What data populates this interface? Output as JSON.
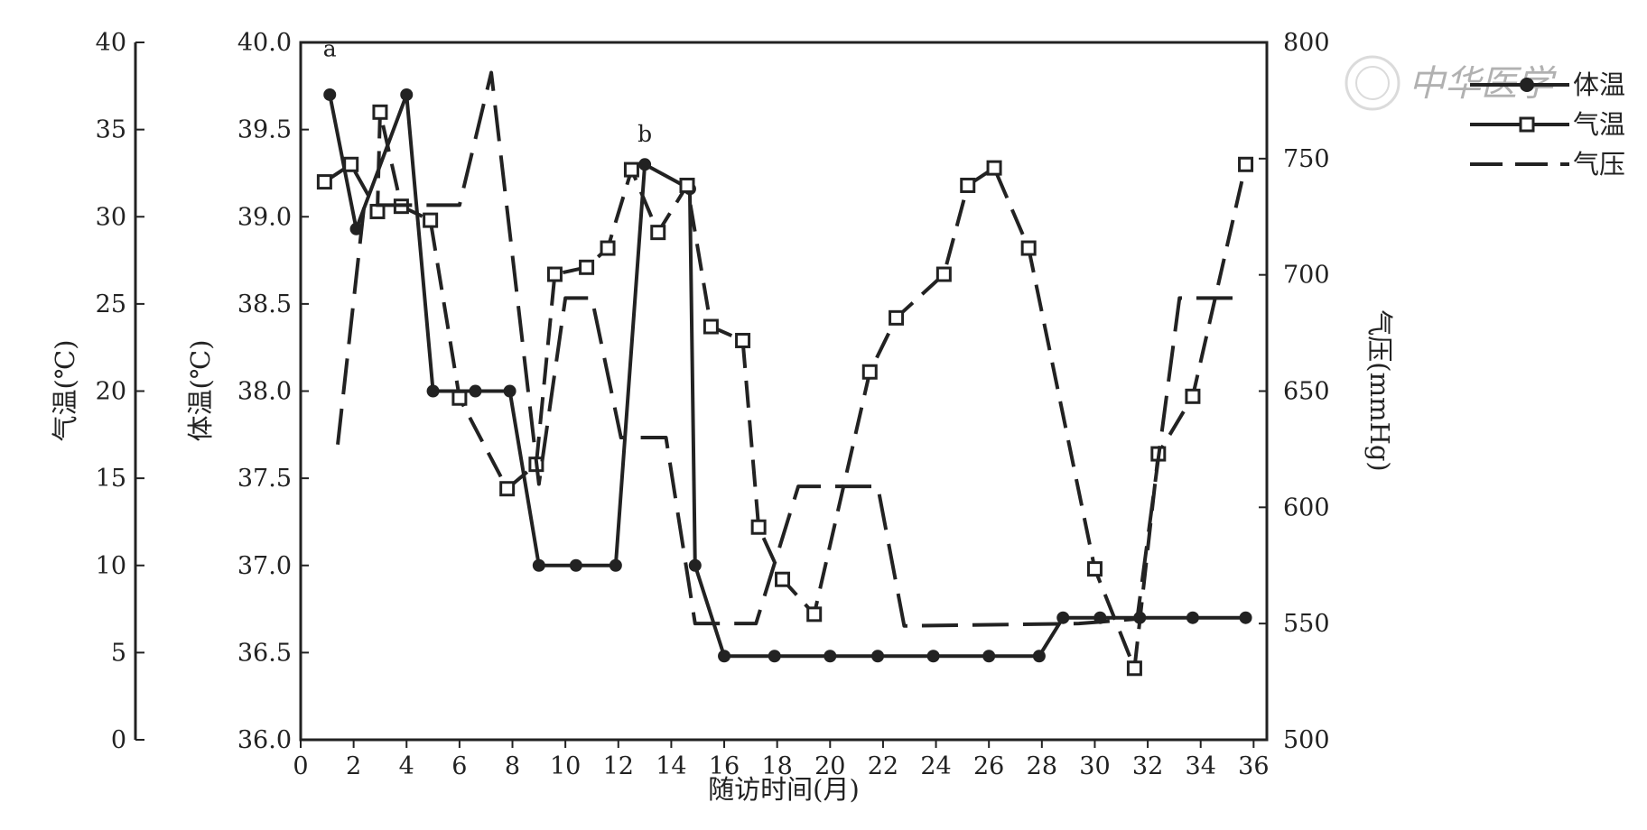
{
  "chart_data": {
    "type": "line",
    "xlabel": "随访时间(月)",
    "x_ticks": [
      "0",
      "2",
      "4",
      "6",
      "8",
      "10",
      "12",
      "14",
      "16",
      "18",
      "20",
      "22",
      "24",
      "26",
      "28",
      "30",
      "32",
      "34",
      "36"
    ],
    "xlim": [
      0,
      36.5
    ],
    "axes": {
      "air_temp": {
        "label": "气温(℃)",
        "ylim": [
          0,
          40
        ],
        "ticks": [
          "0",
          "5",
          "10",
          "15",
          "20",
          "25",
          "30",
          "35",
          "40"
        ]
      },
      "body_temp": {
        "label": "体温(℃)",
        "ylim": [
          36.0,
          40.0
        ],
        "ticks": [
          "36.0",
          "36.5",
          "37.0",
          "37.5",
          "38.0",
          "38.5",
          "39.0",
          "39.5",
          "40.0"
        ]
      },
      "pressure": {
        "label": "气压(mmHg)",
        "ylim": [
          500,
          800
        ],
        "ticks": [
          "500",
          "550",
          "600",
          "650",
          "700",
          "750",
          "800"
        ]
      }
    },
    "annotations": [
      {
        "text": "a",
        "x": 1.1,
        "y": 39.92
      },
      {
        "text": "b",
        "x": 13.0,
        "y": 39.43
      }
    ],
    "series": [
      {
        "name": "体温",
        "axis": "body_temp",
        "style": "solid",
        "marker": "filled-circle",
        "points": [
          [
            1.1,
            39.7
          ],
          [
            2.1,
            38.93
          ],
          [
            4.0,
            39.7
          ],
          [
            5.0,
            38.0
          ],
          [
            6.6,
            38.0
          ],
          [
            7.9,
            38.0
          ],
          [
            9.0,
            37.0
          ],
          [
            10.4,
            37.0
          ],
          [
            11.9,
            37.0
          ],
          [
            13.0,
            39.3
          ],
          [
            14.7,
            39.16
          ],
          [
            14.9,
            37.0
          ],
          [
            16.0,
            36.48
          ],
          [
            17.9,
            36.48
          ],
          [
            20.0,
            36.48
          ],
          [
            21.8,
            36.48
          ],
          [
            23.9,
            36.48
          ],
          [
            26.0,
            36.48
          ],
          [
            27.9,
            36.48
          ],
          [
            28.8,
            36.7
          ],
          [
            30.2,
            36.7
          ],
          [
            31.7,
            36.7
          ],
          [
            33.7,
            36.7
          ],
          [
            35.7,
            36.7
          ]
        ]
      },
      {
        "name": "气温",
        "axis": "air_temp",
        "style": "dashed",
        "marker": "open-square",
        "points": [
          [
            0.9,
            32
          ],
          [
            1.9,
            33
          ],
          [
            2.9,
            30.3
          ],
          [
            3.0,
            36
          ],
          [
            3.8,
            30.6
          ],
          [
            4.9,
            29.8
          ],
          [
            6.0,
            19.6
          ],
          [
            7.8,
            14.4
          ],
          [
            8.9,
            15.8
          ],
          [
            9.6,
            26.7
          ],
          [
            10.8,
            27.1
          ],
          [
            11.6,
            28.2
          ],
          [
            12.5,
            32.7
          ],
          [
            13.5,
            29.1
          ],
          [
            14.6,
            31.8
          ],
          [
            15.5,
            23.7
          ],
          [
            16.7,
            22.9
          ],
          [
            17.3,
            12.2
          ],
          [
            18.2,
            9.2
          ],
          [
            19.4,
            7.2
          ],
          [
            21.5,
            21.1
          ],
          [
            22.5,
            24.2
          ],
          [
            24.3,
            26.7
          ],
          [
            25.2,
            31.8
          ],
          [
            26.2,
            32.8
          ],
          [
            27.5,
            28.2
          ],
          [
            30.0,
            9.8
          ],
          [
            31.5,
            4.1
          ],
          [
            32.4,
            16.4
          ],
          [
            33.7,
            19.7
          ],
          [
            35.7,
            33.0
          ]
        ]
      },
      {
        "name": "气压",
        "axis": "pressure",
        "style": "long-dash",
        "marker": "none",
        "points": [
          [
            1.4,
            627
          ],
          [
            2.4,
            730
          ],
          [
            6.0,
            730
          ],
          [
            7.2,
            787
          ],
          [
            9.0,
            610
          ],
          [
            10.0,
            690
          ],
          [
            11.0,
            690
          ],
          [
            12.1,
            630
          ],
          [
            13.8,
            630
          ],
          [
            14.9,
            550
          ],
          [
            17.2,
            550
          ],
          [
            18.8,
            609
          ],
          [
            21.8,
            609
          ],
          [
            22.8,
            549
          ],
          [
            29.4,
            550
          ],
          [
            31.6,
            552
          ],
          [
            33.2,
            690
          ],
          [
            35.6,
            690
          ]
        ]
      }
    ],
    "legend": {
      "position": "top-right"
    }
  },
  "watermark": "中华医学"
}
